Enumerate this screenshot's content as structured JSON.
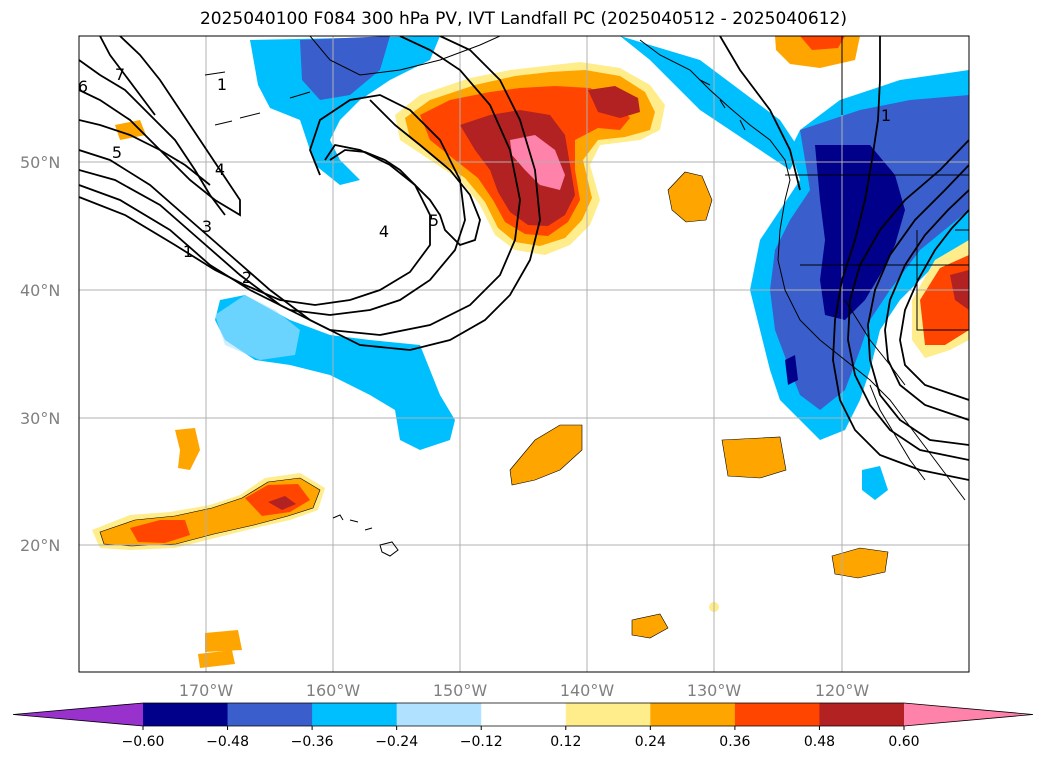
{
  "title": "2025040100 F084 300 hPa PV, IVT Landfall PC (2025040512 - 2025040612)",
  "lat_labels": [
    "50°N",
    "40°N",
    "30°N",
    "20°N"
  ],
  "lon_labels": [
    "170°W",
    "160°W",
    "150°W",
    "140°W",
    "130°W",
    "120°W"
  ],
  "pv_contour_labels": [
    "6",
    "7",
    "5",
    "1",
    "4",
    "3",
    "1",
    "2",
    "4",
    "5",
    "1"
  ],
  "colorbar": {
    "tick_labels": [
      "−0.60",
      "−0.48",
      "−0.36",
      "−0.24",
      "−0.12",
      "0.12",
      "0.24",
      "0.36",
      "0.48",
      "0.60"
    ],
    "colors": [
      "#9932cc",
      "#00008b",
      "#3a5fcd",
      "#00bfff",
      "#b0e2ff",
      "#ffffff",
      "#ffec8b",
      "#ffa500",
      "#ff4500",
      "#b22222",
      "#ff82ab"
    ]
  },
  "colors": {
    "grid": "#b0b0b0",
    "contour": "#000000",
    "coast": "#000000"
  }
}
